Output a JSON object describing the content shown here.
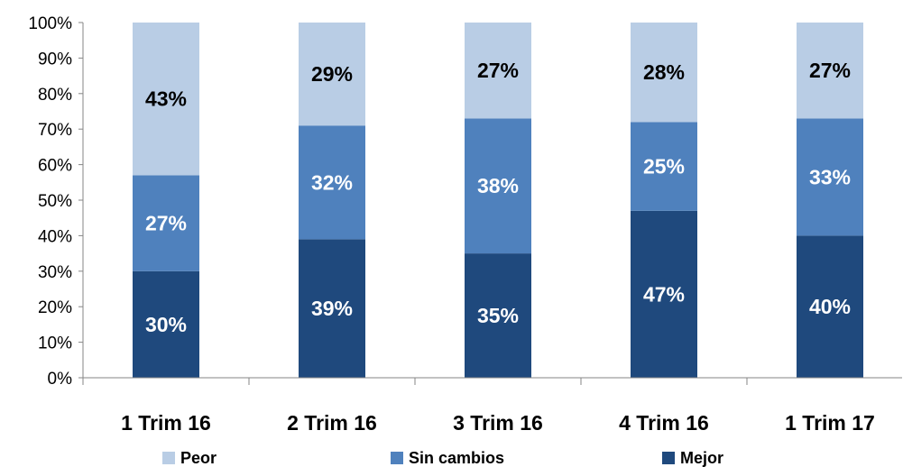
{
  "chart_data": {
    "type": "bar",
    "stacked": true,
    "normalized": true,
    "categories": [
      "1 Trim 16",
      "2 Trim 16",
      "3 Trim 16",
      "4 Trim 16",
      "1 Trim 17"
    ],
    "series": [
      {
        "name": "Mejor",
        "values": [
          30,
          39,
          35,
          47,
          40
        ],
        "labels": [
          "30%",
          "39%",
          "35%",
          "47%",
          "40%"
        ],
        "color": "#1f497d",
        "label_color": "#ffffff"
      },
      {
        "name": "Sin cambios",
        "values": [
          27,
          32,
          38,
          25,
          33
        ],
        "labels": [
          "27%",
          "32%",
          "38%",
          "25%",
          "33%"
        ],
        "color": "#4f81bd",
        "label_color": "#ffffff"
      },
      {
        "name": "Peor",
        "values": [
          43,
          29,
          27,
          28,
          27
        ],
        "labels": [
          "43%",
          "29%",
          "27%",
          "28%",
          "27%"
        ],
        "color": "#b9cde5",
        "label_color": "#000000"
      }
    ],
    "y_ticks": [
      "0%",
      "10%",
      "20%",
      "30%",
      "40%",
      "50%",
      "60%",
      "70%",
      "80%",
      "90%",
      "100%"
    ],
    "ylim": [
      0,
      100
    ],
    "grid": false,
    "legend_position": "bottom",
    "legend_order": [
      "Peor",
      "Sin cambios",
      "Mejor"
    ],
    "title": "",
    "xlabel": "",
    "ylabel": ""
  }
}
